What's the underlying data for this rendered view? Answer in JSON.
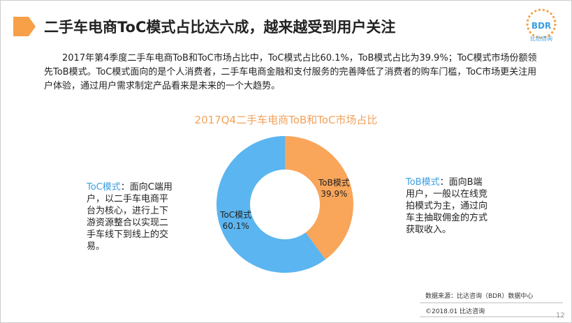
{
  "header": {
    "title": "二手车电商ToC模式占比达六成，越来越受到用户关注",
    "logo": "BDR",
    "logo_sub": "比达咨询"
  },
  "paragraph": "2017年第4季度二手车电商ToB和ToC市场占比中，ToC模式占比60.1%，ToB模式占比为39.9%；ToC模式市场份额领先ToB模式。ToC模式面向的是个人消费者，二手车电商金融和支付服务的完善降低了消费者的购车门槛，ToC市场更关注用户体验，通过用户需求制定产品看来是未来的一个大趋势。",
  "chart_data": {
    "type": "pie",
    "title": "2017Q4二手车电商ToB和ToC市场占比",
    "categories": [
      "ToB模式",
      "ToC模式"
    ],
    "values": [
      39.9,
      60.1
    ],
    "value_labels": [
      "39.9%",
      "60.1%"
    ],
    "colors": [
      "#f9a55a",
      "#5bb5f0"
    ],
    "donut": true
  },
  "annotations": [
    {
      "term": "ToC模式",
      "text": "：面向C端用户，以二手车电商平台为核心，进行上下游资源整合以实现二手车线下到线上的交易。"
    },
    {
      "term": "ToB模式",
      "text": "：面向B端用户，一般以在线竞拍模式为主，通过向车主抽取佣金的方式获取收入。"
    }
  ],
  "footer": {
    "source": "数据来源：比达咨询（BDR）数据中心",
    "copyright": "©2018.01   比达咨询",
    "page": "12"
  }
}
